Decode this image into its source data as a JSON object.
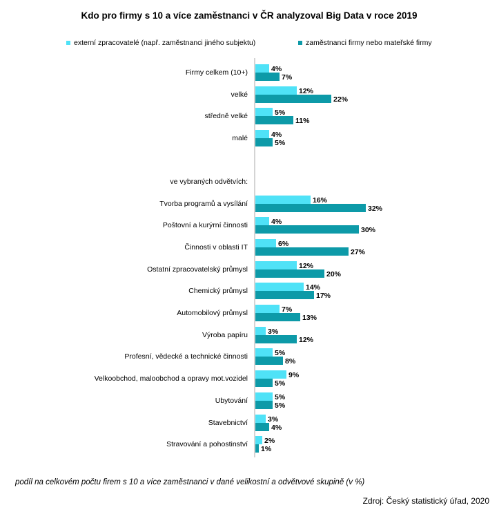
{
  "chart_data": {
    "type": "bar",
    "orientation": "horizontal",
    "title": "Kdo pro firmy s 10 a více zaměstnanci v ČR analyzoval Big Data v roce 2019",
    "categories": [
      "Firmy celkem (10+)",
      "velké",
      "středně velké",
      "malé",
      "ve vybraných odvětvích:",
      "Tvorba programů a vysílání",
      "Poštovní a kurýrní činnosti",
      "Činnosti v oblasti IT",
      "Ostatní zpracovatelský průmysl",
      "Chemický průmysl",
      "Automobilový průmysl",
      "Výroba papíru",
      "Profesní, vědecké a technické činnosti",
      "Velkoobchod, maloobchod a opravy mot.vozidel",
      "Ubytování",
      "Stavebnictví",
      "Stravování a pohostinství"
    ],
    "series": [
      {
        "name": "externí zpracovatelé (např. zaměstnanci jiného subjektu)",
        "color": "#4fe2f7",
        "values": [
          4,
          12,
          5,
          4,
          null,
          16,
          4,
          6,
          12,
          14,
          7,
          3,
          5,
          9,
          5,
          3,
          2
        ]
      },
      {
        "name": "zaměstnanci firmy nebo mateřské firmy",
        "color": "#0d9aa8",
        "values": [
          7,
          22,
          11,
          5,
          null,
          32,
          30,
          27,
          20,
          17,
          13,
          12,
          8,
          5,
          5,
          4,
          1
        ]
      }
    ],
    "value_suffix": "%",
    "legend_position": "top",
    "grid": false
  },
  "footnote": "podíl na celkovém počtu firem s 10 a více zaměstnanci v dané velikostní a odvětvové skupině (v %)",
  "source": "Zdroj: Český statistický úřad, 2020"
}
